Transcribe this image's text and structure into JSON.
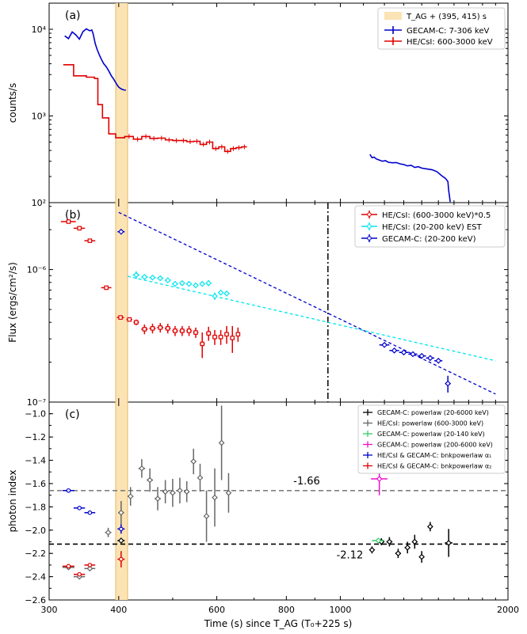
{
  "figure": {
    "xlabel": "Time (s) since T_AG (T₀+225 s)",
    "x_scale": "log",
    "xlim": [
      300,
      2000
    ],
    "x_ticks": [
      300,
      400,
      600,
      800,
      1000,
      2000
    ],
    "x_tick_labels": [
      "300",
      "400",
      "600",
      "800",
      "1000",
      "2000"
    ],
    "shaded_band": [
      395,
      415
    ],
    "band_label": "T_AG + (395, 415) s",
    "band_color": "#fbe3b4"
  },
  "chart_data": [
    {
      "panel": "(a)",
      "type": "line",
      "ylabel": "counts/s",
      "y_scale": "log",
      "ylim": [
        100,
        20000
      ],
      "y_ticks": [
        100,
        1000,
        10000
      ],
      "y_tick_labels": [
        "10²",
        "10³",
        "10⁴"
      ],
      "legend_position": "top-right",
      "series": [
        {
          "name": "GECAM-C: 7-306 keV",
          "color": "#0000cc",
          "segments": [
            [
              [
                320,
                8400
              ],
              [
                325,
                7800
              ],
              [
                330,
                9300
              ],
              [
                335,
                8600
              ],
              [
                340,
                7700
              ],
              [
                345,
                9400
              ],
              [
                350,
                10100
              ],
              [
                355,
                9600
              ],
              [
                358,
                9800
              ],
              [
                360,
                8800
              ],
              [
                363,
                6800
              ],
              [
                366,
                5800
              ],
              [
                370,
                4900
              ],
              [
                373,
                4400
              ],
              [
                376,
                4000
              ],
              [
                380,
                3700
              ],
              [
                384,
                3300
              ],
              [
                388,
                2900
              ],
              [
                391,
                2700
              ],
              [
                394,
                2500
              ],
              [
                397,
                2300
              ],
              [
                400,
                2150
              ],
              [
                404,
                2050
              ],
              [
                408,
                2000
              ],
              [
                412,
                1980
              ]
            ],
            [
              [
                1130,
                360
              ],
              [
                1140,
                330
              ],
              [
                1150,
                335
              ],
              [
                1160,
                320
              ],
              [
                1175,
                310
              ],
              [
                1190,
                300
              ],
              [
                1205,
                305
              ],
              [
                1220,
                292
              ],
              [
                1240,
                288
              ],
              [
                1260,
                290
              ],
              [
                1280,
                280
              ],
              [
                1300,
                275
              ],
              [
                1320,
                265
              ],
              [
                1340,
                270
              ],
              [
                1360,
                255
              ],
              [
                1380,
                260
              ],
              [
                1400,
                250
              ],
              [
                1430,
                245
              ],
              [
                1460,
                240
              ],
              [
                1490,
                228
              ],
              [
                1520,
                205
              ],
              [
                1545,
                190
              ],
              [
                1560,
                175
              ],
              [
                1565,
                140
              ],
              [
                1570,
                120
              ],
              [
                1575,
                102
              ]
            ]
          ]
        },
        {
          "name": "HE/CsI: 600-3000 keV",
          "color": "#e00000",
          "steps": [
            [
              318,
              332,
              3900
            ],
            [
              332,
              350,
              2900
            ],
            [
              350,
              362,
              2800
            ],
            [
              362,
              367,
              2700
            ],
            [
              367,
              374,
              1350
            ],
            [
              374,
              384,
              950
            ],
            [
              384,
              395,
              620
            ],
            [
              395,
              410,
              560
            ],
            [
              410,
              425,
              580
            ],
            [
              425,
              440,
              540
            ],
            [
              440,
              455,
              580
            ],
            [
              455,
              470,
              550
            ],
            [
              470,
              485,
              555
            ],
            [
              485,
              500,
              530
            ],
            [
              500,
              515,
              520
            ],
            [
              515,
              530,
              520
            ],
            [
              530,
              545,
              505
            ],
            [
              545,
              560,
              510
            ],
            [
              560,
              575,
              470
            ],
            [
              575,
              590,
              500
            ],
            [
              590,
              605,
              420
            ],
            [
              605,
              620,
              440
            ],
            [
              620,
              635,
              390
            ],
            [
              635,
              650,
              420
            ],
            [
              650,
              665,
              430
            ],
            [
              665,
              680,
              440
            ]
          ]
        }
      ]
    },
    {
      "panel": "(b)",
      "type": "scatter",
      "ylabel": "Flux (ergs/cm²/s)",
      "y_scale": "log",
      "ylim": [
        1e-07,
        3.2e-06
      ],
      "y_ticks": [
        1e-07,
        1e-06
      ],
      "y_tick_labels": [
        "10⁻⁷",
        "10⁻⁶"
      ],
      "vertical_line_x": 950,
      "legend_position": "top-right",
      "series": [
        {
          "name": "HE/CsI: (600-3000 keV)*0.5",
          "color": "#e00000",
          "points": [
            [
              325,
              2.3e-06,
              10,
              0
            ],
            [
              340,
              2.05e-06,
              8,
              0
            ],
            [
              355,
              1.65e-06,
              8,
              0
            ],
            [
              380,
              7.3e-07,
              8,
              0
            ],
            [
              403,
              4.35e-07,
              6,
              0
            ],
            [
              418,
              4.2e-07,
              5,
              0
            ],
            [
              430,
              4e-07,
              5,
              2e-08
            ],
            [
              445,
              3.55e-07,
              6,
              3e-08
            ],
            [
              460,
              3.6e-07,
              6,
              3e-08
            ],
            [
              475,
              3.65e-07,
              6,
              3e-08
            ],
            [
              490,
              3.6e-07,
              6,
              3e-08
            ],
            [
              505,
              3.45e-07,
              6,
              3e-08
            ],
            [
              520,
              3.45e-07,
              6,
              3e-08
            ],
            [
              535,
              3.45e-07,
              6,
              3e-08
            ],
            [
              550,
              3.35e-07,
              6,
              3e-08
            ],
            [
              565,
              2.75e-07,
              6,
              6e-08
            ],
            [
              580,
              3.3e-07,
              6,
              4e-08
            ],
            [
              595,
              3.1e-07,
              6,
              4e-08
            ],
            [
              610,
              3.1e-07,
              6,
              4e-08
            ],
            [
              625,
              3.25e-07,
              6,
              5e-08
            ],
            [
              640,
              3.05e-07,
              6,
              7e-08
            ],
            [
              655,
              3.25e-07,
              6,
              4e-08
            ]
          ]
        },
        {
          "name": "HE/CsI: (20-200 keV) EST",
          "color": "#00e5ee",
          "points": [
            [
              430,
              9.1e-07,
              6,
              6e-08
            ],
            [
              445,
              8.8e-07,
              6,
              4e-08
            ],
            [
              460,
              8.7e-07,
              6,
              3e-08
            ],
            [
              475,
              8.6e-07,
              6,
              3e-08
            ],
            [
              490,
              8.3e-07,
              6,
              3e-08
            ],
            [
              505,
              7.8e-07,
              6,
              3e-08
            ],
            [
              520,
              7.9e-07,
              6,
              3e-08
            ],
            [
              535,
              7.8e-07,
              6,
              3e-08
            ],
            [
              550,
              7.6e-07,
              6,
              3e-08
            ],
            [
              565,
              7.8e-07,
              6,
              3e-08
            ],
            [
              580,
              7.9e-07,
              6,
              4e-08
            ],
            [
              595,
              6.3e-07,
              5,
              4e-08
            ],
            [
              610,
              6.7e-07,
              5,
              3e-08
            ],
            [
              625,
              6.6e-07,
              5,
              3e-08
            ]
          ]
        },
        {
          "name": "GECAM-C: (20-200 keV)",
          "color": "#0000cc",
          "points": [
            [
              404,
              1.93e-06,
              6,
              0
            ],
            [
              1200,
              2.7e-07,
              25,
              0
            ],
            [
              1250,
              2.45e-07,
              25,
              0
            ],
            [
              1300,
              2.37e-07,
              25,
              0
            ],
            [
              1350,
              2.3e-07,
              25,
              0
            ],
            [
              1400,
              2.23e-07,
              25,
              0
            ],
            [
              1450,
              2.15e-07,
              25,
              0
            ],
            [
              1500,
              2.05e-07,
              25,
              0
            ],
            [
              1560,
              1.38e-07,
              18,
              2e-08
            ]
          ]
        }
      ],
      "fit_lines": [
        {
          "color": "#0000cc",
          "from": [
            400,
            2.7e-06
          ],
          "to": [
            1900,
            1.15e-07
          ]
        },
        {
          "color": "#00e5ee",
          "from": [
            415,
            8.9e-07
          ],
          "to": [
            1900,
            2.05e-07
          ]
        }
      ]
    },
    {
      "panel": "(c)",
      "type": "scatter",
      "ylabel": "photon index",
      "y_scale": "linear",
      "ylim": [
        -2.6,
        -0.9
      ],
      "y_inverted": true,
      "y_ticks": [
        -1.0,
        -1.2,
        -1.4,
        -1.6,
        -1.8,
        -2.0,
        -2.2,
        -2.4,
        -2.6
      ],
      "y_tick_labels": [
        "−1.0",
        "−1.2",
        "−1.4",
        "−1.6",
        "−1.8",
        "−2.0",
        "−2.2",
        "−2.4",
        "−2.6"
      ],
      "legend_position": "top-right",
      "hlines": [
        {
          "y": -1.66,
          "color": "#7f7f7f",
          "label": "-1.66",
          "label_x": 870
        },
        {
          "y": -2.12,
          "color": "#000000",
          "label": "-2.12",
          "label_x": 1040
        }
      ],
      "series": [
        {
          "name": "GECAM-C: powerlaw (20-6000 keV)",
          "color": "#000000",
          "points": [
            [
              404,
              -2.09,
              6,
              0
            ],
            [
              1140,
              -2.17,
              12,
              0.03
            ],
            [
              1185,
              -2.1,
              15,
              0.03
            ],
            [
              1225,
              -2.1,
              15,
              0.04
            ],
            [
              1270,
              -2.2,
              15,
              0.04
            ],
            [
              1320,
              -2.15,
              15,
              0.05
            ],
            [
              1360,
              -2.1,
              15,
              0.06
            ],
            [
              1400,
              -2.23,
              15,
              0.05
            ],
            [
              1450,
              -1.97,
              15,
              0.04
            ],
            [
              1565,
              -2.11,
              25,
              0.12
            ]
          ]
        },
        {
          "name": "HE/CsI: powerlaw (600-3000 keV)",
          "color": "#666666",
          "points": [
            [
              325,
              -2.32,
              8,
              0
            ],
            [
              340,
              -2.4,
              8,
              0
            ],
            [
              355,
              -2.33,
              8,
              0
            ],
            [
              383,
              -2.02,
              5,
              0.04
            ],
            [
              404,
              -1.85,
              5,
              0.1
            ],
            [
              420,
              -1.71,
              5,
              0.08
            ],
            [
              440,
              -1.47,
              6,
              0.08
            ],
            [
              455,
              -1.57,
              6,
              0.1
            ],
            [
              470,
              -1.73,
              6,
              0.1
            ],
            [
              485,
              -1.67,
              6,
              0.1
            ],
            [
              500,
              -1.68,
              6,
              0.12
            ],
            [
              515,
              -1.66,
              6,
              0.11
            ],
            [
              530,
              -1.67,
              6,
              0.09
            ],
            [
              545,
              -1.41,
              6,
              0.11
            ],
            [
              560,
              -1.55,
              6,
              0.12
            ],
            [
              575,
              -1.88,
              6,
              0.22
            ],
            [
              595,
              -1.72,
              6,
              0.25
            ],
            [
              612,
              -1.25,
              6,
              0.32
            ],
            [
              630,
              -1.68,
              6,
              0.17
            ]
          ]
        },
        {
          "name": "GECAM-C: powerlaw (20-140 keV)",
          "color": "#33cc66",
          "points": [
            [
              1170,
              -2.09,
              30,
              0.02
            ]
          ]
        },
        {
          "name": "GECAM-C: powerlaw (200-6000 keV)",
          "color": "#ee11cc",
          "points": [
            [
              1175,
              -1.56,
              40,
              0.14
            ]
          ]
        },
        {
          "name": "HE/CsI & GECAM-C: bnkpowerlaw α₁",
          "color": "#0000cc",
          "points": [
            [
              325,
              -1.66,
              8,
              0
            ],
            [
              340,
              -1.81,
              8,
              0
            ],
            [
              355,
              -1.85,
              8,
              0
            ],
            [
              404,
              -1.99,
              6,
              0.04
            ]
          ]
        },
        {
          "name": "HE/CsI & GECAM-C: bnkpowerlaw α₂",
          "color": "#e00000",
          "points": [
            [
              325,
              -2.31,
              8,
              0
            ],
            [
              340,
              -2.38,
              8,
              0
            ],
            [
              355,
              -2.3,
              8,
              0
            ],
            [
              404,
              -2.25,
              6,
              0.07
            ]
          ]
        }
      ]
    }
  ]
}
